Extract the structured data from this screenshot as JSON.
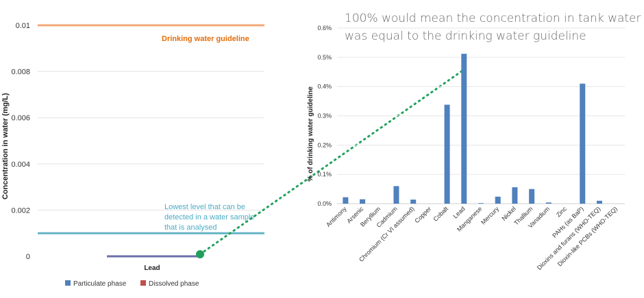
{
  "caption": {
    "line1": "100% would mean the concentration in tank water",
    "line2": "was equal to the drinking water guideline"
  },
  "colors": {
    "particulate": "#4f81bd",
    "dissolved": "#c0504d",
    "guideline_line": "#f2a876",
    "guideline_text": "#e46c0a",
    "detection_line": "#63b4c4",
    "detection_text": "#4bacc6",
    "connector": "#1ea05a",
    "lead_bar": "#6b6fa8"
  },
  "chart_data": [
    {
      "type": "bar",
      "orientation": "horizontal-stub",
      "title": "",
      "xlabel": "",
      "ylabel": "Concentration in water (mg/L)",
      "ylim": [
        0,
        0.01
      ],
      "yticks": [
        "0",
        "0.002",
        "0.004",
        "0.006",
        "0.008",
        "0.01"
      ],
      "categories": [
        "Lead"
      ],
      "series": [
        {
          "name": "Particulate phase",
          "values": [
            0
          ]
        },
        {
          "name": "Dissolved phase",
          "values": [
            0
          ]
        }
      ],
      "reference_lines": [
        {
          "value": 0.01,
          "label": "Drinking water guideline"
        },
        {
          "value": 0.001,
          "label_lines": [
            "Lowest level that can be",
            "detected in a water sample",
            "that is analysed"
          ]
        }
      ],
      "grid": true,
      "legend": "bottom"
    },
    {
      "type": "bar",
      "title": "",
      "xlabel": "",
      "ylabel": "% of drinking water guideline",
      "ylim": [
        0,
        0.6
      ],
      "yticks": [
        "0.0%",
        "0.1%",
        "0.2%",
        "0.3%",
        "0.4%",
        "0.5%",
        "0.6%"
      ],
      "categories": [
        "Antimony",
        "Arsenic",
        "Beryllium",
        "Cadmium",
        "Chromium (Cr VI assumed)",
        "Copper",
        "Cobalt",
        "Lead",
        "Manganese",
        "Mercury",
        "Nickel",
        "Thallium",
        "Vanadium",
        "Zinc",
        "PAHs (as BaP)",
        "Dioxins and furans (WHO-TEQ)",
        "Dioxin-like PCBs (WHO-TEQ)"
      ],
      "values": [
        0.022,
        0.015,
        0,
        0.06,
        0.014,
        0,
        0.338,
        0.512,
        0.002,
        0.024,
        0.056,
        0.05,
        0.004,
        0,
        0.41,
        0.01,
        0
      ],
      "grid": true,
      "legend": "none"
    }
  ]
}
